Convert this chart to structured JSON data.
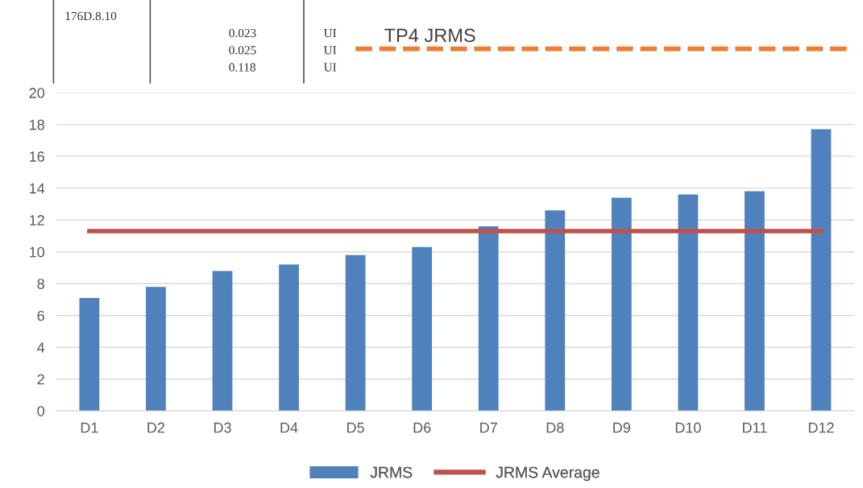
{
  "chart_data": {
    "type": "bar",
    "categories": [
      "D1",
      "D2",
      "D3",
      "D4",
      "D5",
      "D6",
      "D7",
      "D8",
      "D9",
      "D10",
      "D11",
      "D12"
    ],
    "series": [
      {
        "name": "JRMS",
        "color": "#4f81bd",
        "values": [
          7.1,
          7.8,
          8.8,
          9.2,
          9.8,
          10.3,
          11.6,
          12.6,
          13.4,
          13.6,
          13.8,
          17.7
        ]
      },
      {
        "name": "JRMS Average",
        "type": "line",
        "color": "#c0504d",
        "values": [
          11.3,
          11.3,
          11.3,
          11.3,
          11.3,
          11.3,
          11.3,
          11.3,
          11.3,
          11.3,
          11.3,
          11.3
        ]
      }
    ],
    "annotations": [
      "176D.8.10",
      "0.023",
      "0.025",
      "0.118",
      "UI",
      "UI",
      "UI",
      "TP4 JRMS"
    ],
    "ylim": [
      0,
      20
    ],
    "yticks": [
      0,
      2,
      4,
      6,
      8,
      10,
      12,
      14,
      16,
      18,
      20
    ],
    "grid": "y",
    "legend": "bottom"
  }
}
